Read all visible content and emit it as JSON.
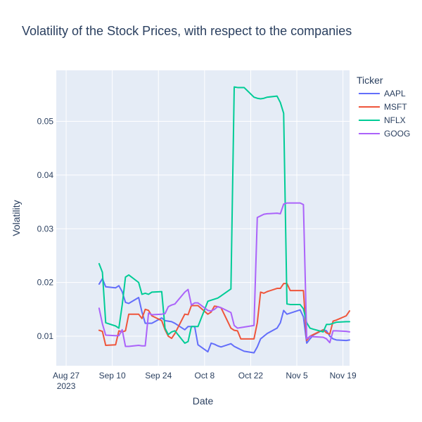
{
  "chart_data": {
    "type": "line",
    "title": "Volatility of the Stock Prices, with respect to the companies",
    "xlabel": "Date",
    "ylabel": "Volatility",
    "legend_title": "Ticker",
    "legend_placement": "top-right",
    "grid": true,
    "xlim": [
      "2023-08-24",
      "2023-11-21"
    ],
    "ylim": [
      0.0045,
      0.0595
    ],
    "x_ticks": [
      {
        "value": "2023-08-27",
        "label": "Aug 27",
        "label2": "2023"
      },
      {
        "value": "2023-09-10",
        "label": "Sep 10"
      },
      {
        "value": "2023-09-24",
        "label": "Sep 24"
      },
      {
        "value": "2023-10-08",
        "label": "Oct 8"
      },
      {
        "value": "2023-10-22",
        "label": "Oct 22"
      },
      {
        "value": "2023-11-05",
        "label": "Nov 5"
      },
      {
        "value": "2023-11-19",
        "label": "Nov 19"
      }
    ],
    "y_ticks": [
      {
        "value": 0.01,
        "label": "0.01"
      },
      {
        "value": 0.02,
        "label": "0.02"
      },
      {
        "value": 0.03,
        "label": "0.03"
      },
      {
        "value": 0.04,
        "label": "0.04"
      },
      {
        "value": 0.05,
        "label": "0.05"
      }
    ],
    "x": [
      "2023-09-06",
      "2023-09-07",
      "2023-09-08",
      "2023-09-11",
      "2023-09-12",
      "2023-09-13",
      "2023-09-14",
      "2023-09-15",
      "2023-09-18",
      "2023-09-19",
      "2023-09-20",
      "2023-09-21",
      "2023-09-22",
      "2023-09-25",
      "2023-09-26",
      "2023-09-27",
      "2023-09-28",
      "2023-09-29",
      "2023-10-02",
      "2023-10-03",
      "2023-10-04",
      "2023-10-05",
      "2023-10-06",
      "2023-10-09",
      "2023-10-10",
      "2023-10-11",
      "2023-10-12",
      "2023-10-13",
      "2023-10-16",
      "2023-10-17",
      "2023-10-18",
      "2023-10-19",
      "2023-10-20",
      "2023-10-23",
      "2023-10-24",
      "2023-10-25",
      "2023-10-26",
      "2023-10-27",
      "2023-10-30",
      "2023-10-31",
      "2023-11-01",
      "2023-11-02",
      "2023-11-03",
      "2023-11-06",
      "2023-11-07",
      "2023-11-08",
      "2023-11-09",
      "2023-11-10",
      "2023-11-13",
      "2023-11-14",
      "2023-11-15",
      "2023-11-16",
      "2023-11-17",
      "2023-11-20",
      "2023-11-21"
    ],
    "series": [
      {
        "name": "AAPL",
        "color": "#636efa",
        "values": [
          0.0197,
          0.0207,
          0.0192,
          0.019,
          0.0194,
          0.0183,
          0.0163,
          0.0161,
          0.0172,
          0.0145,
          0.0124,
          0.0124,
          0.0124,
          0.0134,
          0.0129,
          0.0128,
          0.0127,
          0.0124,
          0.0112,
          0.0118,
          0.0118,
          0.0118,
          0.0084,
          0.0071,
          0.0087,
          0.0085,
          0.0082,
          0.008,
          0.0086,
          0.0081,
          0.0078,
          0.0075,
          0.0072,
          0.0069,
          0.008,
          0.0095,
          0.01,
          0.0105,
          0.0115,
          0.0125,
          0.0148,
          0.0141,
          0.0143,
          0.0149,
          0.0136,
          0.0087,
          0.0095,
          0.0102,
          0.0112,
          0.011,
          0.01,
          0.0095,
          0.0093,
          0.0092,
          0.0093
        ]
      },
      {
        "name": "MSFT",
        "color": "#ef553b",
        "values": [
          0.0111,
          0.0109,
          0.0083,
          0.0084,
          0.011,
          0.0108,
          0.011,
          0.0141,
          0.0141,
          0.0133,
          0.015,
          0.0148,
          0.0138,
          0.0129,
          0.0112,
          0.01,
          0.0096,
          0.0105,
          0.0141,
          0.014,
          0.0157,
          0.0157,
          0.0157,
          0.0141,
          0.0145,
          0.0156,
          0.0155,
          0.0153,
          0.0115,
          0.0111,
          0.011,
          0.0095,
          0.0095,
          0.0095,
          0.0125,
          0.0182,
          0.018,
          0.0183,
          0.0189,
          0.0189,
          0.0198,
          0.0198,
          0.0185,
          0.0185,
          0.0185,
          0.0092,
          0.01,
          0.0103,
          0.0112,
          0.0106,
          0.0104,
          0.0128,
          0.013,
          0.0138,
          0.0147
        ]
      },
      {
        "name": "NFLX",
        "color": "#00cc96",
        "values": [
          0.0235,
          0.0219,
          0.0125,
          0.0119,
          0.0115,
          0.0158,
          0.021,
          0.0214,
          0.02,
          0.0178,
          0.018,
          0.0178,
          0.0182,
          0.0183,
          0.0115,
          0.0103,
          0.0108,
          0.011,
          0.0087,
          0.009,
          0.0118,
          0.0118,
          0.0118,
          0.0165,
          0.0167,
          0.0169,
          0.0171,
          0.0175,
          0.0188,
          0.0564,
          0.0563,
          0.0563,
          0.0563,
          0.0545,
          0.0543,
          0.0542,
          0.0543,
          0.0545,
          0.0547,
          0.0535,
          0.0515,
          0.016,
          0.0159,
          0.0159,
          0.0151,
          0.0125,
          0.0115,
          0.0113,
          0.0108,
          0.0122,
          0.0122,
          0.0124,
          0.0126,
          0.0127,
          0.0127
        ]
      },
      {
        "name": "GOOG",
        "color": "#ab63fa",
        "values": [
          0.0152,
          0.0123,
          0.0102,
          0.0101,
          0.0101,
          0.0112,
          0.0081,
          0.0081,
          0.0083,
          0.0082,
          0.0082,
          0.0143,
          0.014,
          0.0141,
          0.0142,
          0.0155,
          0.0158,
          0.016,
          0.0182,
          0.0187,
          0.0158,
          0.0162,
          0.0162,
          0.0148,
          0.0147,
          0.015,
          0.0155,
          0.0153,
          0.0144,
          0.012,
          0.0115,
          0.0116,
          0.0117,
          0.012,
          0.0321,
          0.0324,
          0.0327,
          0.0328,
          0.0329,
          0.0328,
          0.0346,
          0.0348,
          0.0348,
          0.0348,
          0.0345,
          0.0095,
          0.01,
          0.0099,
          0.0098,
          0.0095,
          0.0088,
          0.011,
          0.011,
          0.0109,
          0.0108
        ]
      }
    ]
  }
}
